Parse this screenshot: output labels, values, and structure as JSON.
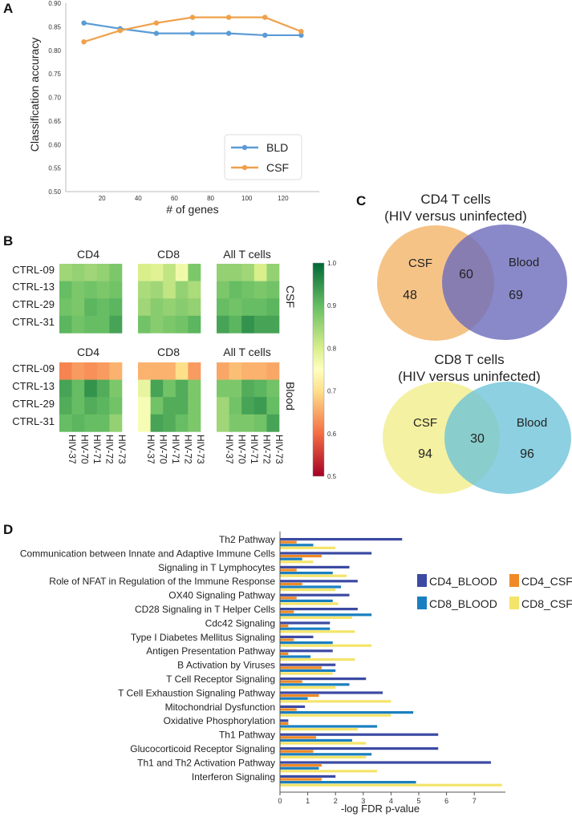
{
  "panel_letters": {
    "a": "A",
    "b": "B",
    "c": "C",
    "d": "D"
  },
  "chart_data": [
    {
      "panel": "A",
      "type": "line",
      "xlabel": "# of genes",
      "ylabel": "Classification accuracy",
      "ylim": [
        0.5,
        0.9
      ],
      "xlim": [
        0,
        140
      ],
      "xticks": [
        20,
        40,
        60,
        80,
        100,
        120
      ],
      "yticks": [
        "0.50",
        "0.55",
        "0.60",
        "0.65",
        "0.70",
        "0.75",
        "0.80",
        "0.85",
        "0.90"
      ],
      "legend_position": "lower-right",
      "series": [
        {
          "name": "BLD",
          "color": "#5b9bd5",
          "x": [
            10,
            30,
            50,
            70,
            90,
            110,
            130
          ],
          "y": [
            0.858,
            0.846,
            0.836,
            0.836,
            0.836,
            0.832,
            0.832
          ]
        },
        {
          "name": "CSF",
          "color": "#f0a04b",
          "x": [
            10,
            30,
            50,
            70,
            90,
            110,
            130
          ],
          "y": [
            0.818,
            0.842,
            0.858,
            0.87,
            0.87,
            0.87,
            0.84
          ]
        }
      ]
    },
    {
      "panel": "B",
      "type": "heatmap",
      "row_labels": [
        "CTRL-09",
        "CTRL-13",
        "CTRL-29",
        "CTRL-31"
      ],
      "column_labels": [
        "HIV-37",
        "HIV-70",
        "HIV-71",
        "HIV-72",
        "HIV-73"
      ],
      "group_labels": [
        "CD4",
        "CD8",
        "All T cells"
      ],
      "tissue_labels": [
        "CSF",
        "Blood"
      ],
      "colorbar_ticks": [
        "1.0",
        "0.9",
        "0.8",
        "0.7",
        "0.6",
        "0.5"
      ],
      "colorbar_range": [
        0.5,
        1.0
      ],
      "values": {
        "CSF": {
          "CD4": [
            [
              0.85,
              0.86,
              0.85,
              0.86,
              0.88
            ],
            [
              0.9,
              0.88,
              0.89,
              0.88,
              0.89
            ],
            [
              0.89,
              0.88,
              0.91,
              0.9,
              0.91
            ],
            [
              0.91,
              0.89,
              0.9,
              0.9,
              0.93
            ]
          ],
          "CD8": [
            [
              0.8,
              0.79,
              0.82,
              0.77,
              0.88
            ],
            [
              0.84,
              0.85,
              0.82,
              0.86,
              0.84
            ],
            [
              0.85,
              0.87,
              0.86,
              0.87,
              0.86
            ],
            [
              0.89,
              0.87,
              0.88,
              0.89,
              0.91
            ]
          ],
          "All T cells": [
            [
              0.86,
              0.86,
              0.85,
              0.8,
              0.86
            ],
            [
              0.88,
              0.9,
              0.89,
              0.88,
              0.89
            ],
            [
              0.9,
              0.89,
              0.9,
              0.9,
              0.91
            ],
            [
              0.93,
              0.91,
              0.95,
              0.93,
              0.93
            ]
          ]
        },
        "Blood": {
          "CD4": [
            [
              0.62,
              0.64,
              0.63,
              0.64,
              0.66
            ],
            [
              0.93,
              0.9,
              0.95,
              0.92,
              0.88
            ],
            [
              0.92,
              0.9,
              0.92,
              0.91,
              0.89
            ],
            [
              0.9,
              0.91,
              0.9,
              0.9,
              0.86
            ]
          ],
          "CD8": [
            [
              0.66,
              0.66,
              0.66,
              0.7,
              0.64
            ],
            [
              0.78,
              0.93,
              0.89,
              0.92,
              0.88
            ],
            [
              0.76,
              0.89,
              0.92,
              0.92,
              0.88
            ],
            [
              0.76,
              0.93,
              0.92,
              0.9,
              0.88
            ]
          ],
          "All T cells": [
            [
              0.65,
              0.67,
              0.66,
              0.66,
              0.65
            ],
            [
              0.88,
              0.88,
              0.92,
              0.91,
              0.89
            ],
            [
              0.85,
              0.89,
              0.93,
              0.94,
              0.9
            ],
            [
              0.85,
              0.88,
              0.88,
              0.89,
              0.93
            ]
          ]
        }
      }
    },
    {
      "panel": "C",
      "type": "venn",
      "diagrams": [
        {
          "title": "CD4 T cells",
          "subtitle": "(HIV versus uninfected)",
          "left_label": "CSF",
          "right_label": "Blood",
          "left_only": "48",
          "overlap": "60",
          "right_only": "69",
          "left_color": "#f5b872",
          "right_color": "#6c6bbb"
        },
        {
          "title": "CD8 T cells",
          "subtitle": "(HIV versus uninfected)",
          "left_label": "CSF",
          "right_label": "Blood",
          "left_only": "94",
          "overlap": "30",
          "right_only": "96",
          "left_color": "#f3ef98",
          "right_color": "#6cc3d8"
        }
      ]
    },
    {
      "panel": "D",
      "type": "bar",
      "orientation": "horizontal",
      "xlabel": "-log FDR p-value",
      "xlim": [
        0,
        8
      ],
      "xticks": [
        "0",
        "1",
        "2",
        "3",
        "4",
        "5",
        "6",
        "7"
      ],
      "legend_position": "top-right",
      "categories": [
        "Th2 Pathway",
        "Communication between Innate and Adaptive Immune Cells",
        "Signaling in T Lymphocytes",
        "Role of NFAT in Regulation of the Immune Response",
        "OX40 Signaling Pathway",
        "CD28 Signaling in T Helper Cells",
        "Cdc42 Signaling",
        "Type I Diabetes Mellitus Signaling",
        "Antigen Presentation Pathway",
        "B Activation by Viruses",
        "T Cell Receptor Signaling",
        "T Cell Exhaustion Signaling Pathway",
        "Mitochondrial Dysfunction",
        "Oxidative Phosphorylation",
        "Th1 Pathway",
        "Glucocorticoid Receptor Signaling",
        "Th1 and Th2 Activation Pathway",
        "Interferon Signaling"
      ],
      "series": [
        {
          "name": "CD4_BLOOD",
          "color": "#3b4aa3",
          "values": [
            4.4,
            3.3,
            2.5,
            2.8,
            2.5,
            2.8,
            1.8,
            1.2,
            1.9,
            2.0,
            3.1,
            3.7,
            0.9,
            0.3,
            5.7,
            5.7,
            7.6,
            2.0
          ]
        },
        {
          "name": "CD4_CSF",
          "color": "#f08a24",
          "values": [
            0.6,
            1.5,
            0.6,
            0.8,
            0.6,
            0.5,
            0.3,
            0.5,
            0.3,
            1.5,
            0.8,
            1.4,
            0.6,
            0.3,
            1.3,
            1.2,
            1.5,
            1.5
          ]
        },
        {
          "name": "CD8_BLOOD",
          "color": "#1a7fc0",
          "values": [
            1.2,
            0.8,
            1.9,
            2.2,
            1.9,
            3.3,
            1.8,
            1.9,
            1.1,
            2.0,
            2.5,
            1.0,
            4.8,
            3.5,
            2.6,
            3.3,
            1.4,
            4.9
          ]
        },
        {
          "name": "CD8_CSF",
          "color": "#f4e46a",
          "values": [
            2.0,
            1.2,
            2.4,
            2.0,
            2.1,
            2.6,
            2.7,
            3.3,
            2.7,
            1.9,
            2.0,
            4.0,
            4.0,
            2.8,
            3.1,
            3.1,
            3.5,
            8.0
          ]
        }
      ]
    }
  ]
}
